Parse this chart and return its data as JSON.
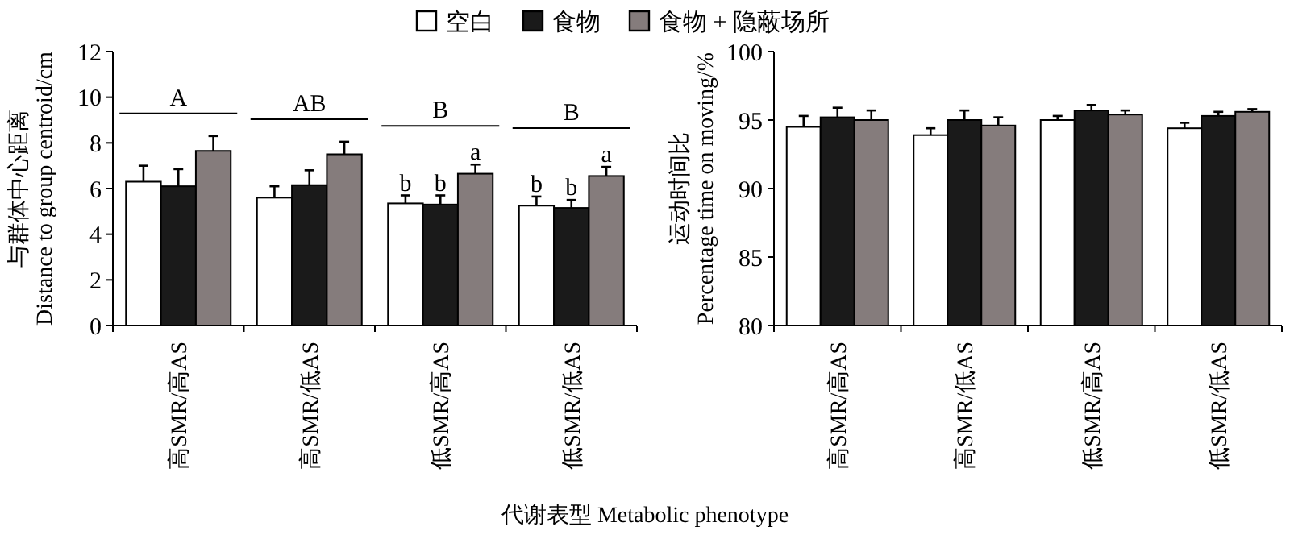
{
  "chart_data": [
    {
      "type": "bar",
      "ylabel": "与群体中心距离\nDistance to group centroid/cm",
      "xlabel": "代谢表型  Metabolic phenotype",
      "categories": [
        "高SMR/高AS",
        "高SMR/低AS",
        "低SMR/高AS",
        "低SMR/低AS"
      ],
      "ylim": [
        0,
        12
      ],
      "yticks": [
        0,
        2,
        4,
        6,
        8,
        10,
        12
      ],
      "legend": "top",
      "series": [
        {
          "name": "空白",
          "color": "#ffffff",
          "values": [
            6.3,
            5.6,
            5.35,
            5.25
          ],
          "errors": [
            [
              6.3,
              7.0
            ],
            [
              5.6,
              6.1
            ],
            [
              5.35,
              5.7
            ],
            [
              5.25,
              5.65
            ]
          ],
          "value_labels": [
            null,
            null,
            "b",
            "b"
          ]
        },
        {
          "name": "食物",
          "color": "#1a1a1a",
          "values": [
            6.1,
            6.15,
            5.3,
            5.15
          ],
          "errors": [
            [
              6.1,
              6.85
            ],
            [
              6.15,
              6.8
            ],
            [
              5.3,
              5.7
            ],
            [
              5.15,
              5.5
            ]
          ],
          "value_labels": [
            null,
            null,
            "b",
            "b"
          ]
        },
        {
          "name": "食物 + 隐蔽场所",
          "color": "#857c7c",
          "values": [
            7.65,
            7.5,
            6.65,
            6.55
          ],
          "errors": [
            [
              7.65,
              8.3
            ],
            [
              7.5,
              8.05
            ],
            [
              6.65,
              7.05
            ],
            [
              6.55,
              6.95
            ]
          ],
          "value_labels": [
            null,
            null,
            "a",
            "a"
          ]
        }
      ],
      "annotations": [
        "A",
        "AB",
        "B",
        "B"
      ]
    },
    {
      "type": "bar",
      "ylabel": "运动时间比\nPercentage time on moving/%",
      "categories": [
        "高SMR/高AS",
        "高SMR/低AS",
        "低SMR/高AS",
        "低SMR/低AS"
      ],
      "ylim": [
        80,
        100
      ],
      "yticks": [
        80,
        85,
        90,
        95,
        100
      ],
      "series": [
        {
          "color": "#ffffff",
          "values": [
            94.5,
            93.9,
            95.0,
            94.4
          ],
          "errors": [
            [
              94.5,
              95.3
            ],
            [
              93.9,
              94.4
            ],
            [
              95.0,
              95.3
            ],
            [
              94.4,
              94.8
            ]
          ]
        },
        {
          "color": "#1a1a1a",
          "values": [
            95.2,
            95.0,
            95.7,
            95.3
          ],
          "errors": [
            [
              95.2,
              95.9
            ],
            [
              95.0,
              95.7
            ],
            [
              95.7,
              96.1
            ],
            [
              95.3,
              95.6
            ]
          ]
        },
        {
          "color": "#857c7c",
          "values": [
            95.0,
            94.6,
            95.4,
            95.6
          ],
          "errors": [
            [
              95.0,
              95.7
            ],
            [
              94.6,
              95.2
            ],
            [
              95.4,
              95.7
            ],
            [
              95.6,
              95.8
            ]
          ]
        }
      ]
    }
  ]
}
